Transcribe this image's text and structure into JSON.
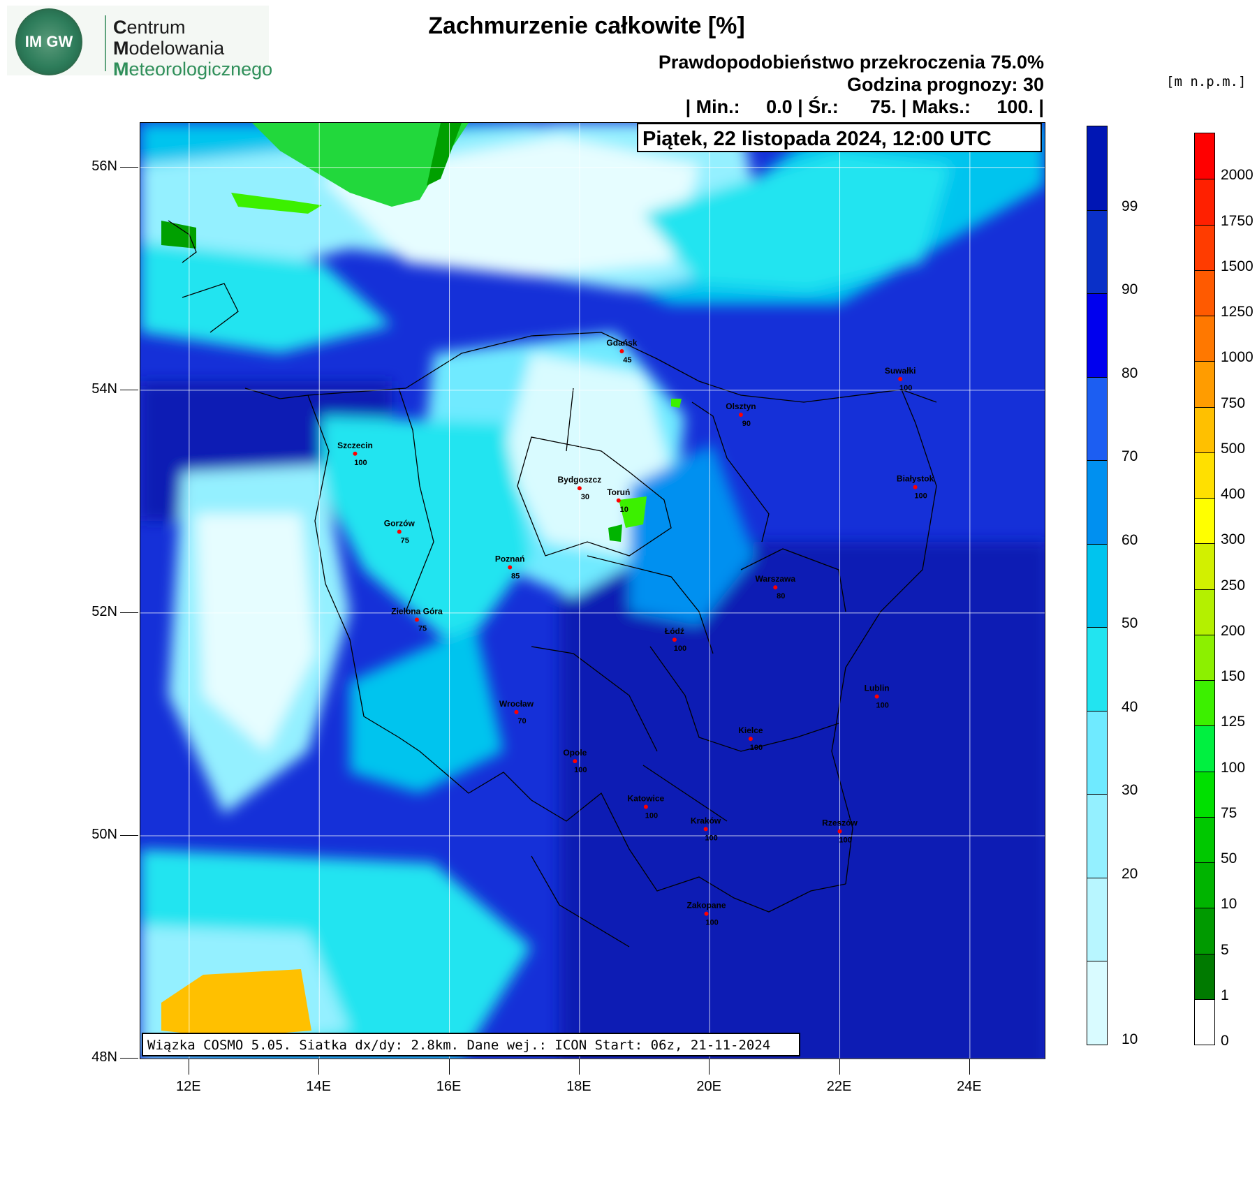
{
  "logo": {
    "emblem_text": "IM GW",
    "line1_initial": "C",
    "line1_rest": "entrum",
    "line2_initial": "M",
    "line2_rest": "odelowania",
    "line3_initial": "M",
    "line3_rest": "eteorologicznego"
  },
  "title": "Zachmurzenie całkowite [%]",
  "header": {
    "probability": "Prawdopodobieństwo przekroczenia 75.0%",
    "forecast_hour": "Godzina prognozy: 30",
    "stats": "| Min.:     0.0 | Śr.:      75. | Maks.:     100. |"
  },
  "date": "Piątek, 22 listopada 2024, 12:00 UTC",
  "info": "Wiązka COSMO 5.05. Siatka dx/dy: 2.8km. Dane wej.: ICON Start: 06z, 21-11-2024",
  "unit_label": "[m n.p.m.]",
  "map": {
    "lat_labels": [
      "56N",
      "54N",
      "52N",
      "50N",
      "48N"
    ],
    "lon_labels": [
      "12E",
      "14E",
      "16E",
      "18E",
      "20E",
      "22E",
      "24E"
    ],
    "cities": [
      {
        "name": "Gdańsk",
        "value": "45",
        "lon": 18.65,
        "lat": 54.35
      },
      {
        "name": "Suwałki",
        "value": "100",
        "lon": 22.93,
        "lat": 54.1
      },
      {
        "name": "Olsztyn",
        "value": "90",
        "lon": 20.48,
        "lat": 53.78
      },
      {
        "name": "Szczecin",
        "value": "100",
        "lon": 14.55,
        "lat": 53.43
      },
      {
        "name": "Bydgoszcz",
        "value": "30",
        "lon": 18.0,
        "lat": 53.12
      },
      {
        "name": "Białystok",
        "value": "100",
        "lon": 23.16,
        "lat": 53.13
      },
      {
        "name": "Toruń",
        "value": "10",
        "lon": 18.6,
        "lat": 53.01
      },
      {
        "name": "Gorzów",
        "value": "75",
        "lon": 15.23,
        "lat": 52.73
      },
      {
        "name": "Poznań",
        "value": "85",
        "lon": 16.93,
        "lat": 52.41
      },
      {
        "name": "Warszawa",
        "value": "80",
        "lon": 21.01,
        "lat": 52.23
      },
      {
        "name": "Zielona Góra",
        "value": "75",
        "lon": 15.5,
        "lat": 51.94
      },
      {
        "name": "Łódź",
        "value": "100",
        "lon": 19.46,
        "lat": 51.76
      },
      {
        "name": "Lublin",
        "value": "100",
        "lon": 22.57,
        "lat": 51.25
      },
      {
        "name": "Wrocław",
        "value": "70",
        "lon": 17.03,
        "lat": 51.11
      },
      {
        "name": "Kielce",
        "value": "100",
        "lon": 20.63,
        "lat": 50.87
      },
      {
        "name": "Opole",
        "value": "100",
        "lon": 17.93,
        "lat": 50.67
      },
      {
        "name": "Katowice",
        "value": "100",
        "lon": 19.02,
        "lat": 50.26
      },
      {
        "name": "Kraków",
        "value": "100",
        "lon": 19.94,
        "lat": 50.06
      },
      {
        "name": "Rzeszów",
        "value": "100",
        "lon": 22.0,
        "lat": 50.04
      },
      {
        "name": "Zakopane",
        "value": "100",
        "lon": 19.95,
        "lat": 49.3
      }
    ]
  },
  "colorbar": {
    "levels": [
      "10",
      "20",
      "30",
      "40",
      "50",
      "60",
      "70",
      "80",
      "90",
      "99"
    ],
    "colors": [
      "#d9fbff",
      "#b8f6ff",
      "#94f0ff",
      "#6feaff",
      "#22e4f0",
      "#00c4ee",
      "#0090f0",
      "#1c5ef2",
      "#0000ee",
      "#0a30c8",
      "#0016b4"
    ]
  },
  "elevation_bar": {
    "levels": [
      "0",
      "1",
      "5",
      "10",
      "50",
      "75",
      "100",
      "125",
      "150",
      "200",
      "250",
      "300",
      "400",
      "500",
      "750",
      "1000",
      "1250",
      "1500",
      "1750",
      "2000"
    ],
    "colors": [
      "#ffffff",
      "#007a00",
      "#009a00",
      "#00b400",
      "#00c800",
      "#00e000",
      "#00f040",
      "#3cf000",
      "#8cf000",
      "#b4f000",
      "#d2f000",
      "#ffff00",
      "#ffe000",
      "#ffc000",
      "#ff9c00",
      "#ff7800",
      "#ff5a00",
      "#ff3c00",
      "#ff2000",
      "#ff0000"
    ]
  }
}
